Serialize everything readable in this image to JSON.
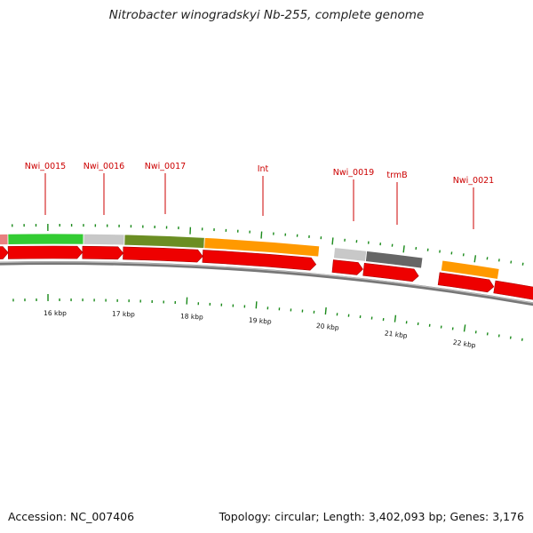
{
  "title": "Nitrobacter winogradskyi Nb-255, complete genome",
  "footer": {
    "accession": "Accession: NC_007406",
    "summary": "Topology: circular; Length: 3,402,093 bp; Genes: 3,176"
  },
  "colors": {
    "gene_label": "#cc0000",
    "cds_arrow": "#ee0000",
    "tick": "#1a8a1a",
    "backbone": "#777777",
    "cog_green": "#33cc33",
    "cog_grey": "#c8c8c8",
    "cog_olive": "#6b8e23",
    "cog_orange": "#ff9900",
    "cog_darkgrey": "#666666",
    "cog_pink": "#e88080"
  },
  "gene_labels": [
    "Nwi_0015",
    "Nwi_0016",
    "Nwi_0017",
    "Int",
    "Nwi_0019",
    "trmB",
    "Nwi_0021"
  ],
  "scale_labels": [
    "16 kbp",
    "17 kbp",
    "18 kbp",
    "19 kbp",
    "20 kbp",
    "21 kbp",
    "22 kbp"
  ],
  "cog_color_sequence": [
    "cog_pink",
    "cog_green",
    "cog_grey",
    "cog_olive",
    "cog_orange",
    "cog_grey",
    "cog_darkgrey",
    "cog_orange"
  ]
}
